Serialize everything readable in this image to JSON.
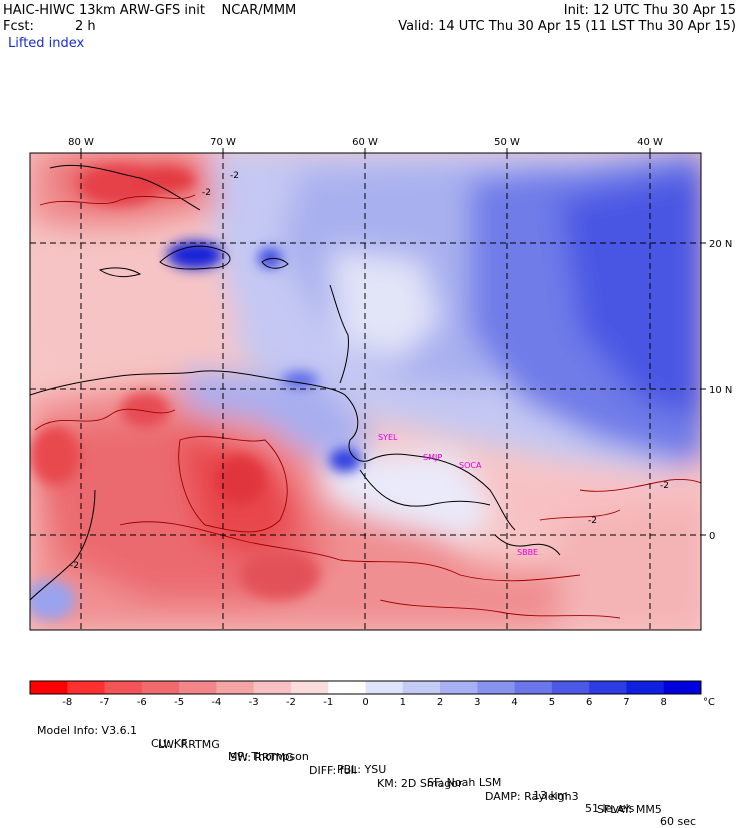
{
  "header": {
    "model_line": "HAIC-HIWC 13km ARW-GFS init    NCAR/MMM",
    "fcst_label": "Fcst:",
    "fcst_value": "2 h",
    "init_line": "Init: 12 UTC Thu 30 Apr 15",
    "valid_line": "Valid: 14 UTC Thu 30 Apr 15 (11 LST Thu 30 Apr 15)",
    "field_name": "Lifted index"
  },
  "map": {
    "longitude_labels": [
      "80 W",
      "70 W",
      "60 W",
      "50 W",
      "40 W"
    ],
    "latitude_labels": [
      "20 N",
      "10 N",
      "0"
    ],
    "contour_label": "-2",
    "stations": [
      "SYEL",
      "SMJP",
      "SOCA",
      "SBBE"
    ],
    "colors": {
      "negative": "#e8323c",
      "positive": "#1f2ee6",
      "neutral": "#ffffff",
      "contour": "#a00000"
    }
  },
  "colorbar": {
    "levels": [
      "-8",
      "-7",
      "-6",
      "-5",
      "-4",
      "-3",
      "-2",
      "-1",
      "0",
      "1",
      "2",
      "3",
      "4",
      "5",
      "6",
      "7",
      "8"
    ],
    "unit": "°C",
    "colors": [
      "#ff0000",
      "#ff3030",
      "#f25458",
      "#f06a6e",
      "#f2868a",
      "#f5a4a6",
      "#f8c0c2",
      "#fbdcdd",
      "#ffffff",
      "#e0e4fa",
      "#c4cbf5",
      "#a6b0f2",
      "#8893ee",
      "#6a76ea",
      "#4c59e6",
      "#2e3ce3",
      "#1020e0",
      "#0000dd"
    ]
  },
  "footer": {
    "line1": [
      "Model Info: V3.6.1",
      "CU: KF",
      "MP: Thompson",
      "PBL: YSU",
      "SF: Noah LSM",
      "13 km",
      "51 levels",
      "60 sec"
    ],
    "line2": [
      "LW: RRTMG",
      "SW: RRTMG",
      "DIFF: full",
      "KM: 2D Smagor",
      "DAMP: Rayleigh3",
      "SFLAY: MM5"
    ]
  }
}
